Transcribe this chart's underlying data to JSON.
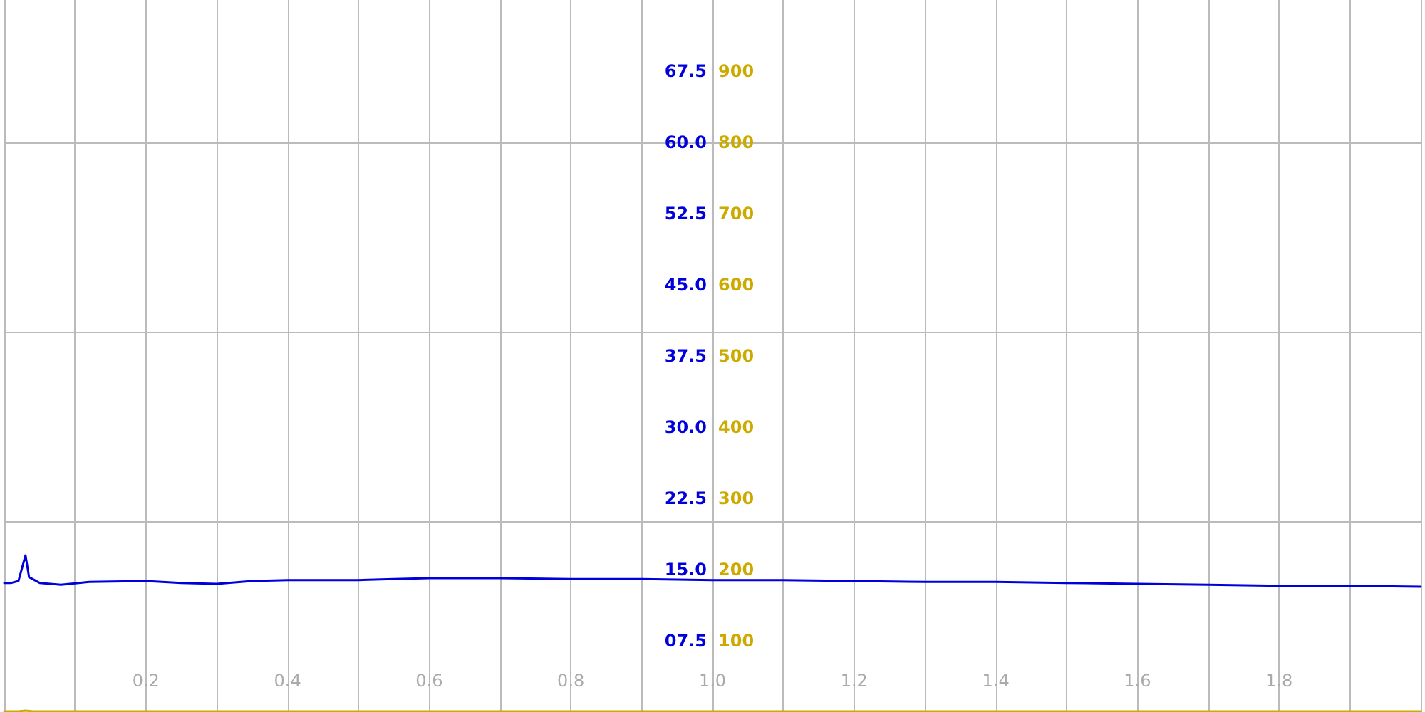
{
  "chart_data": {
    "type": "line",
    "grid": true,
    "marker": "none",
    "line_style": "solid",
    "xlim": [
      0,
      2
    ],
    "xticks": [
      {
        "value": 0,
        "label": null
      },
      {
        "value": 0.1,
        "label": null
      },
      {
        "value": 0.2,
        "label": "0.2"
      },
      {
        "value": 0.3,
        "label": null
      },
      {
        "value": 0.4,
        "label": "0.4"
      },
      {
        "value": 0.5,
        "label": null
      },
      {
        "value": 0.6,
        "label": "0.6"
      },
      {
        "value": 0.7,
        "label": null
      },
      {
        "value": 0.8,
        "label": "0.8"
      },
      {
        "value": 0.9,
        "label": null
      },
      {
        "value": 1.0,
        "label": "1.0"
      },
      {
        "value": 1.1,
        "label": null
      },
      {
        "value": 1.2,
        "label": "1.2"
      },
      {
        "value": 1.3,
        "label": null
      },
      {
        "value": 1.4,
        "label": "1.4"
      },
      {
        "value": 1.5,
        "label": null
      },
      {
        "value": 1.6,
        "label": "1.6"
      },
      {
        "value": 1.7,
        "label": null
      },
      {
        "value": 1.8,
        "label": "1.8"
      },
      {
        "value": 1.9,
        "label": null
      },
      {
        "value": 2.0,
        "label": null
      }
    ],
    "ylim": [
      0,
      75
    ],
    "yticks": [
      {
        "value": 7.5,
        "label": "07.5"
      },
      {
        "value": 15,
        "label": "15.0"
      },
      {
        "value": 22.5,
        "label": "22.5"
      },
      {
        "value": 30,
        "label": "30.0"
      },
      {
        "value": 37.5,
        "label": "37.5"
      },
      {
        "value": 45,
        "label": "45.0"
      },
      {
        "value": 52.5,
        "label": "52.5"
      },
      {
        "value": 60,
        "label": "60.0"
      },
      {
        "value": 67.5,
        "label": "67.5"
      }
    ],
    "y2lim": [
      0,
      1000
    ],
    "y2ticks": [
      100,
      200,
      300,
      400,
      500,
      600,
      700,
      800,
      900
    ],
    "series": [
      {
        "color": "#0000dd",
        "x": [
          0,
          0.01,
          0.02,
          0.03,
          0.035,
          0.05,
          0.08,
          0.12,
          0.2,
          0.25,
          0.3,
          0.35,
          0.4,
          0.5,
          0.55,
          0.6,
          0.7,
          0.8,
          0.9,
          1.0,
          1.1,
          1.2,
          1.3,
          1.4,
          1.5,
          1.6,
          1.7,
          1.8,
          1.9,
          2.0
        ],
        "values": [
          13.6,
          13.6,
          13.8,
          16.5,
          14.2,
          13.6,
          13.4,
          13.7,
          13.8,
          13.6,
          13.5,
          13.8,
          13.9,
          13.9,
          14.0,
          14.1,
          14.1,
          14.0,
          14.0,
          13.9,
          13.9,
          13.8,
          13.7,
          13.7,
          13.6,
          13.5,
          13.4,
          13.3,
          13.3,
          13.2
        ]
      },
      {
        "color": "#ccaa00",
        "axis": "y2",
        "x": [
          0,
          0.02,
          0.03,
          0.04,
          0.06,
          0.2,
          0.5,
          0.8,
          1.0,
          1.3,
          1.6,
          2.0
        ],
        "values": [
          1,
          1,
          2,
          1,
          1,
          1,
          1,
          1,
          1,
          1,
          1,
          1
        ]
      }
    ]
  }
}
